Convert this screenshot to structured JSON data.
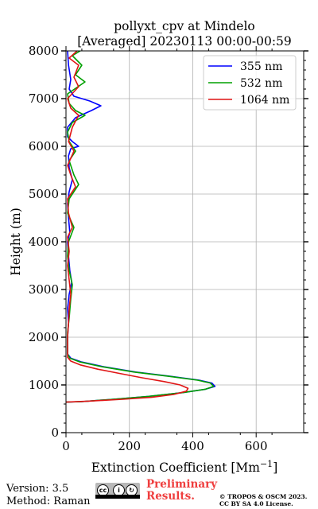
{
  "chart_data": {
    "type": "line",
    "title": "pollyxt_cpv at Mindelo",
    "subtitle": "[Averaged] 20230113 00:00-00:59",
    "xlabel": "Extinction Coefficient [Mm",
    "xlabel_sup": "−1",
    "xlabel_close": "]",
    "ylabel": "Height (m)",
    "xlim": [
      0,
      750
    ],
    "ylim": [
      0,
      8000
    ],
    "xticks": [
      0,
      200,
      400,
      600
    ],
    "yticks": [
      0,
      1000,
      2000,
      3000,
      4000,
      5000,
      6000,
      7000,
      8000
    ],
    "grid": true,
    "legend_position": "top-right",
    "series": [
      {
        "name": "355 nm",
        "color": "#0000ff",
        "points": [
          [
            0,
            640
          ],
          [
            50,
            650
          ],
          [
            150,
            700
          ],
          [
            260,
            760
          ],
          [
            370,
            840
          ],
          [
            440,
            910
          ],
          [
            470,
            970
          ],
          [
            460,
            1040
          ],
          [
            420,
            1100
          ],
          [
            330,
            1180
          ],
          [
            220,
            1270
          ],
          [
            120,
            1380
          ],
          [
            50,
            1480
          ],
          [
            15,
            1560
          ],
          [
            5,
            1650
          ],
          [
            5,
            1750
          ],
          [
            5,
            2000
          ],
          [
            8,
            2300
          ],
          [
            5,
            2600
          ],
          [
            10,
            2900
          ],
          [
            18,
            3150
          ],
          [
            12,
            3400
          ],
          [
            8,
            3700
          ],
          [
            5,
            4000
          ],
          [
            12,
            4200
          ],
          [
            8,
            4500
          ],
          [
            5,
            4800
          ],
          [
            10,
            5050
          ],
          [
            20,
            5300
          ],
          [
            10,
            5550
          ],
          [
            8,
            5800
          ],
          [
            15,
            5950
          ],
          [
            40,
            6000
          ],
          [
            20,
            6100
          ],
          [
            5,
            6200
          ],
          [
            5,
            6400
          ],
          [
            30,
            6600
          ],
          [
            80,
            6750
          ],
          [
            110,
            6850
          ],
          [
            75,
            6950
          ],
          [
            25,
            7050
          ],
          [
            10,
            7200
          ],
          [
            15,
            7400
          ],
          [
            8,
            7700
          ],
          [
            5,
            8000
          ]
        ]
      },
      {
        "name": "532 nm",
        "color": "#00a000",
        "points": [
          [
            0,
            640
          ],
          [
            50,
            650
          ],
          [
            150,
            700
          ],
          [
            260,
            760
          ],
          [
            370,
            840
          ],
          [
            440,
            910
          ],
          [
            466,
            970
          ],
          [
            455,
            1040
          ],
          [
            415,
            1100
          ],
          [
            325,
            1180
          ],
          [
            215,
            1270
          ],
          [
            115,
            1380
          ],
          [
            45,
            1480
          ],
          [
            12,
            1560
          ],
          [
            5,
            1650
          ],
          [
            5,
            1800
          ],
          [
            5,
            2100
          ],
          [
            10,
            2400
          ],
          [
            15,
            2800
          ],
          [
            20,
            3100
          ],
          [
            10,
            3400
          ],
          [
            5,
            3700
          ],
          [
            8,
            4000
          ],
          [
            25,
            4300
          ],
          [
            5,
            4600
          ],
          [
            10,
            4900
          ],
          [
            40,
            5200
          ],
          [
            25,
            5400
          ],
          [
            10,
            5700
          ],
          [
            30,
            5900
          ],
          [
            10,
            6100
          ],
          [
            5,
            6300
          ],
          [
            20,
            6500
          ],
          [
            60,
            6650
          ],
          [
            30,
            6750
          ],
          [
            10,
            6900
          ],
          [
            5,
            7100
          ],
          [
            60,
            7350
          ],
          [
            30,
            7500
          ],
          [
            50,
            7700
          ],
          [
            20,
            7900
          ],
          [
            45,
            8000
          ]
        ]
      },
      {
        "name": "1064 nm",
        "color": "#e01515",
        "points": [
          [
            0,
            640
          ],
          [
            70,
            660
          ],
          [
            180,
            700
          ],
          [
            270,
            740
          ],
          [
            340,
            800
          ],
          [
            380,
            870
          ],
          [
            385,
            930
          ],
          [
            360,
            1000
          ],
          [
            310,
            1070
          ],
          [
            240,
            1150
          ],
          [
            170,
            1240
          ],
          [
            100,
            1330
          ],
          [
            45,
            1420
          ],
          [
            15,
            1500
          ],
          [
            5,
            1580
          ],
          [
            5,
            1700
          ],
          [
            5,
            2000
          ],
          [
            8,
            2300
          ],
          [
            10,
            2600
          ],
          [
            15,
            2900
          ],
          [
            10,
            3200
          ],
          [
            5,
            3500
          ],
          [
            10,
            3800
          ],
          [
            5,
            4100
          ],
          [
            20,
            4300
          ],
          [
            8,
            4600
          ],
          [
            5,
            4900
          ],
          [
            30,
            5150
          ],
          [
            15,
            5400
          ],
          [
            5,
            5600
          ],
          [
            25,
            5900
          ],
          [
            8,
            6100
          ],
          [
            20,
            6400
          ],
          [
            40,
            6650
          ],
          [
            15,
            6800
          ],
          [
            5,
            7000
          ],
          [
            40,
            7250
          ],
          [
            25,
            7450
          ],
          [
            40,
            7700
          ],
          [
            10,
            7850
          ],
          [
            35,
            8000
          ]
        ]
      }
    ]
  },
  "footer": {
    "version": "Version: 3.5",
    "method": "Method: Raman",
    "license_badge": "cc-by-sa-badge",
    "preliminary_line1": "Preliminary",
    "preliminary_line2": "Results.",
    "copyright_line1": "© TROPOS & OSCM 2023.",
    "copyright_line2": "CC BY SA 4.0 License."
  }
}
